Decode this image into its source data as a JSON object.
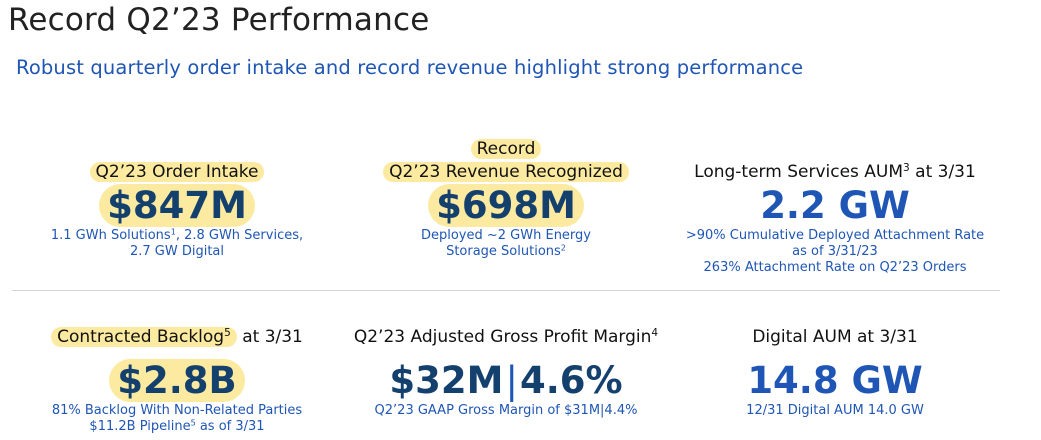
{
  "title": "Record Q2’23 Performance",
  "subtitle": "Robust quarterly order intake and record revenue highlight strong performance",
  "order_intake": {
    "label": "Q2’23 Order Intake",
    "value": "$847M",
    "note_line1_a": "1.1 GWh Solutions",
    "note_line1_sup": "1",
    "note_line1_b": ", 2.8 GWh Services,",
    "note_line2": "2.7 GW Digital"
  },
  "revenue": {
    "label_line1": "Record",
    "label_line2": "Q2’23 Revenue Recognized",
    "value": "$698M",
    "note_line1": "Deployed ~2 GWh Energy",
    "note_line2_a": "Storage Solutions",
    "note_line2_sup": "2"
  },
  "services_aum": {
    "label_a": "Long-term Services AUM",
    "label_sup": "3",
    "label_b": " at 3/31",
    "value": "2.2 GW",
    "note_line1": ">90% Cumulative Deployed Attachment Rate",
    "note_line2": "as of 3/31/23",
    "note_line3": "263% Attachment Rate on Q2’23 Orders"
  },
  "backlog": {
    "label_a": "Contracted Backlog",
    "label_sup": "5",
    "label_b": " at 3/31",
    "value": "$2.8B",
    "note_line1": "81% Backlog With Non-Related Parties",
    "note_line2_a": "$11.2B Pipeline",
    "note_line2_sup": "5",
    "note_line2_b": " as of 3/31"
  },
  "gross_margin": {
    "label_a": "Q2’23 Adjusted Gross Profit Margin",
    "label_sup": "4",
    "value_a": "$32M",
    "value_sep": "|",
    "value_b": "4.6%",
    "note": "Q2’23 GAAP Gross Margin of $31M|4.4%"
  },
  "digital_aum": {
    "label": "Digital AUM at 3/31",
    "value": "14.8 GW",
    "note": "12/31 Digital AUM 14.0 GW"
  },
  "colors": {
    "accent_blue": "#1f56b5",
    "dark_value": "#14406e",
    "highlight": "#fbeaa0"
  }
}
